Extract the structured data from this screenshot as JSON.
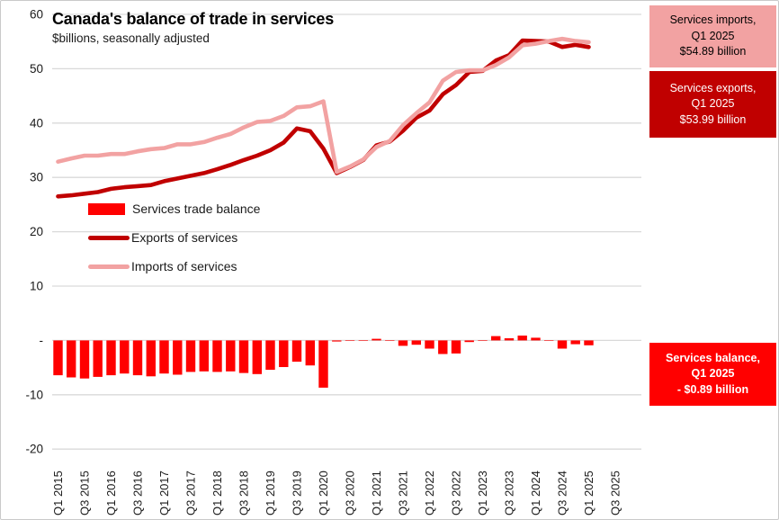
{
  "header": {
    "title": "Canada's balance of trade in services",
    "subtitle": "$billions, seasonally adjusted"
  },
  "colors": {
    "balance_red": "#FF0000",
    "exports_dark_red": "#C00000",
    "imports_pink": "#F2A2A2",
    "gridline_gray": "#D9D9D9",
    "text_dark": "#1a1a1a"
  },
  "chart_data": {
    "type": "combo-bar-line",
    "title": "Canada's balance of trade in services",
    "subtitle": "$billions, seasonally adjusted",
    "grid": true,
    "legend_position": "inside-left",
    "ylim": [
      -20,
      60
    ],
    "y_ticks": [
      {
        "label": "60",
        "value": 60
      },
      {
        "label": "50",
        "value": 50
      },
      {
        "label": "40",
        "value": 40
      },
      {
        "label": "30",
        "value": 30
      },
      {
        "label": "20",
        "value": 20
      },
      {
        "label": "10",
        "value": 10
      },
      {
        "label": "-",
        "value": 0
      },
      {
        "label": "-10",
        "value": -10
      },
      {
        "label": "-20",
        "value": -20
      }
    ],
    "x_categories": [
      "Q1 2015",
      "Q2 2015",
      "Q3 2015",
      "Q4 2015",
      "Q1 2016",
      "Q2 2016",
      "Q3 2016",
      "Q4 2016",
      "Q1 2017",
      "Q2 2017",
      "Q3 2017",
      "Q4 2017",
      "Q1 2018",
      "Q2 2018",
      "Q3 2018",
      "Q4 2018",
      "Q1 2019",
      "Q2 2019",
      "Q3 2019",
      "Q4 2019",
      "Q1 2020",
      "Q2 2020",
      "Q3 2020",
      "Q4 2020",
      "Q1 2021",
      "Q2 2021",
      "Q3 2021",
      "Q4 2021",
      "Q1 2022",
      "Q2 2022",
      "Q3 2022",
      "Q4 2022",
      "Q1 2023",
      "Q2 2023",
      "Q3 2023",
      "Q4 2023",
      "Q1 2024",
      "Q2 2024",
      "Q3 2024",
      "Q4 2024",
      "Q1 2025"
    ],
    "x_tick_labels": [
      "Q1 2015",
      "Q3 2015",
      "Q1 2016",
      "Q3 2016",
      "Q1 2017",
      "Q3 2017",
      "Q1 2018",
      "Q3 2018",
      "Q1 2019",
      "Q3 2019",
      "Q1 2020",
      "Q3 2020",
      "Q1 2021",
      "Q3 2021",
      "Q1 2022",
      "Q3 2022",
      "Q1 2023",
      "Q3 2023",
      "Q1 2024",
      "Q3 2024",
      "Q1 2025",
      "Q3 2025"
    ],
    "series": [
      {
        "id": "balance",
        "name": "Services trade balance",
        "type": "bar",
        "color": "#FF0000",
        "values": [
          -6.4,
          -6.8,
          -7.0,
          -6.7,
          -6.4,
          -6.1,
          -6.4,
          -6.6,
          -6.1,
          -6.3,
          -5.8,
          -5.7,
          -5.8,
          -5.7,
          -6.0,
          -6.2,
          -5.4,
          -4.9,
          -3.9,
          -4.6,
          -8.7,
          -0.2,
          -0.1,
          -0.1,
          0.3,
          -0.1,
          -1.0,
          -0.8,
          -1.5,
          -2.5,
          -2.4,
          -0.3,
          -0.1,
          0.8,
          0.4,
          0.9,
          0.5,
          -0.1,
          -1.5,
          -0.7,
          -0.89
        ]
      },
      {
        "id": "exports",
        "name": "Exports of services",
        "type": "line",
        "color": "#C00000",
        "values": [
          26.5,
          26.7,
          27.0,
          27.3,
          27.9,
          28.2,
          28.4,
          28.6,
          29.3,
          29.8,
          30.3,
          30.8,
          31.5,
          32.3,
          33.2,
          34.0,
          35.0,
          36.4,
          39.0,
          38.5,
          35.3,
          30.8,
          31.9,
          33.2,
          35.9,
          36.6,
          38.6,
          41.0,
          42.3,
          45.3,
          47.0,
          49.4,
          49.6,
          51.5,
          52.5,
          55.2,
          55.1,
          55.0,
          54.0,
          54.4,
          53.99
        ]
      },
      {
        "id": "imports",
        "name": "Imports of services",
        "type": "line",
        "color": "#F2A2A2",
        "values": [
          32.9,
          33.5,
          34.0,
          34.0,
          34.3,
          34.3,
          34.8,
          35.2,
          35.4,
          36.1,
          36.1,
          36.5,
          37.3,
          38.0,
          39.2,
          40.2,
          40.4,
          41.3,
          42.9,
          43.1,
          44.0,
          31.0,
          32.0,
          33.3,
          35.6,
          36.7,
          39.6,
          41.8,
          43.8,
          47.8,
          49.4,
          49.7,
          49.7,
          50.7,
          52.1,
          54.3,
          54.6,
          55.1,
          55.5,
          55.1,
          54.89
        ]
      }
    ]
  },
  "callouts": [
    {
      "id": "imports",
      "bg": "#F2A2A2",
      "fg": "#000000",
      "lines": [
        "Services imports,",
        "Q1 2025",
        "$54.89 billion"
      ]
    },
    {
      "id": "exports",
      "bg": "#C00000",
      "fg": "#FFFFFF",
      "lines": [
        "Services exports,",
        "Q1 2025",
        "$53.99 billion"
      ]
    },
    {
      "id": "balance",
      "bg": "#FF0000",
      "fg": "#FFFFFF",
      "lines": [
        "Services balance,",
        "Q1 2025",
        "- $0.89 billion"
      ]
    }
  ]
}
